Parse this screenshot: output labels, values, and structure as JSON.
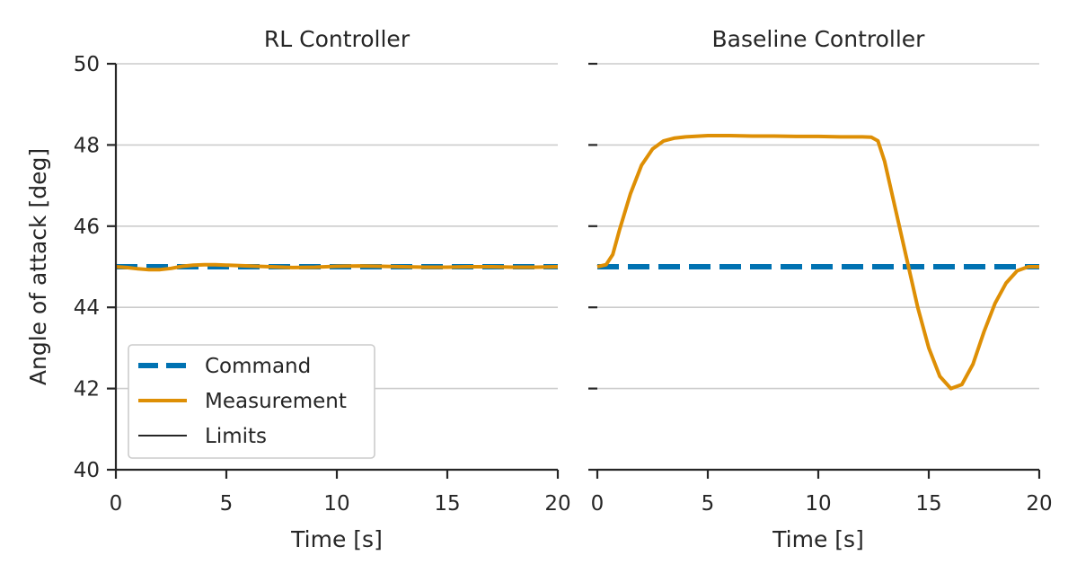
{
  "chart_data": [
    {
      "type": "line",
      "title": "RL Controller",
      "xlabel": "Time [s]",
      "ylabel": "Angle of attack [deg]",
      "xlim": [
        0,
        20
      ],
      "ylim": [
        40,
        50
      ],
      "xticks": [
        "0",
        "5",
        "10",
        "15",
        "20"
      ],
      "yticks": [
        "40",
        "42",
        "44",
        "46",
        "48",
        "50"
      ],
      "grid": "horizontal",
      "legend": {
        "placement": "lower-left",
        "entries": [
          "Command",
          "Measurement",
          "Limits"
        ]
      },
      "series": [
        {
          "name": "Command",
          "style": "dashed",
          "color": "#0072b2",
          "x": [
            0,
            20
          ],
          "y": [
            45.0,
            45.0
          ]
        },
        {
          "name": "Measurement",
          "style": "solid",
          "color": "#de8f05",
          "x": [
            0,
            0.5,
            1,
            1.5,
            2,
            2.5,
            3,
            3.5,
            4,
            4.5,
            5,
            6,
            7,
            8,
            9,
            10,
            11,
            12,
            13,
            14,
            15,
            16,
            17,
            18,
            19,
            20
          ],
          "y": [
            45.0,
            44.98,
            44.95,
            44.93,
            44.93,
            44.96,
            45.01,
            45.04,
            45.05,
            45.05,
            45.04,
            45.02,
            45.0,
            44.98,
            44.99,
            45.01,
            45.02,
            45.01,
            45.0,
            44.99,
            44.99,
            45.0,
            45.0,
            44.99,
            44.99,
            45.0
          ]
        }
      ]
    },
    {
      "type": "line",
      "title": "Baseline Controller",
      "xlabel": "Time [s]",
      "xlim": [
        0,
        20
      ],
      "ylim": [
        40,
        50
      ],
      "xticks": [
        "0",
        "5",
        "10",
        "15",
        "20"
      ],
      "grid": "horizontal",
      "series": [
        {
          "name": "Command",
          "style": "dashed",
          "color": "#0072b2",
          "x": [
            0,
            20
          ],
          "y": [
            45.0,
            45.0
          ]
        },
        {
          "name": "Measurement",
          "style": "solid",
          "color": "#de8f05",
          "x": [
            0,
            0.4,
            0.7,
            1,
            1.5,
            2,
            2.5,
            3,
            3.5,
            4,
            5,
            6,
            7,
            8,
            9,
            10,
            11,
            12,
            12.4,
            12.7,
            13,
            13.5,
            14,
            14.5,
            15,
            15.5,
            16,
            16.5,
            17,
            17.5,
            18,
            18.5,
            19,
            19.5,
            20
          ],
          "y": [
            45.0,
            45.05,
            45.3,
            45.9,
            46.8,
            47.5,
            47.9,
            48.1,
            48.17,
            48.2,
            48.23,
            48.23,
            48.22,
            48.22,
            48.21,
            48.21,
            48.2,
            48.2,
            48.19,
            48.1,
            47.6,
            46.4,
            45.2,
            44.0,
            43.0,
            42.3,
            42.0,
            42.1,
            42.6,
            43.4,
            44.1,
            44.6,
            44.9,
            45.0,
            45.0
          ]
        }
      ]
    }
  ]
}
